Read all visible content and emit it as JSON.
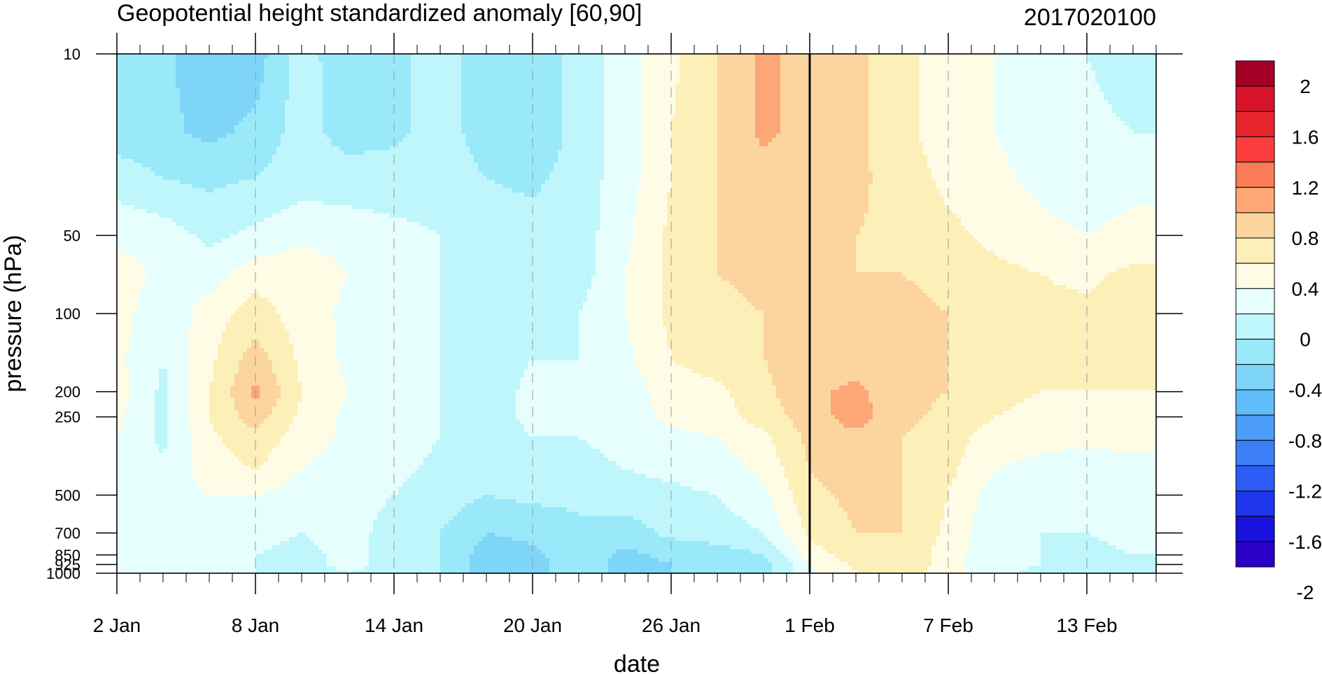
{
  "chart_data": {
    "type": "heatmap",
    "title": "Geopotential height standardized anomaly [60,90]",
    "date_label": "2017020100",
    "xlabel": "date",
    "ylabel": "pressure (hPa)",
    "y_scale": "log",
    "y_reversed": true,
    "ylim": [
      1000,
      10
    ],
    "y_ticks": [
      {
        "value": 10,
        "label": "10"
      },
      {
        "value": 50,
        "label": "50"
      },
      {
        "value": 100,
        "label": "100"
      },
      {
        "value": 200,
        "label": "200"
      },
      {
        "value": 250,
        "label": "250"
      },
      {
        "value": 500,
        "label": "500"
      },
      {
        "value": 700,
        "label": "700"
      },
      {
        "value": 850,
        "label": "850"
      },
      {
        "value": 925,
        "label": "925"
      },
      {
        "value": 1000,
        "label": "1000"
      }
    ],
    "x_start": "2017-01-02",
    "x_end": "2017-02-16",
    "x_ticks": [
      {
        "date": "2017-01-02",
        "label": "2 Jan"
      },
      {
        "date": "2017-01-08",
        "label": "8 Jan"
      },
      {
        "date": "2017-01-14",
        "label": "14 Jan"
      },
      {
        "date": "2017-01-20",
        "label": "20 Jan"
      },
      {
        "date": "2017-01-26",
        "label": "26 Jan"
      },
      {
        "date": "2017-02-01",
        "label": "1 Feb"
      },
      {
        "date": "2017-02-07",
        "label": "7 Feb"
      },
      {
        "date": "2017-02-13",
        "label": "13 Feb"
      }
    ],
    "marker_date": "2017-02-01",
    "colorbar": {
      "labels": [
        "2",
        "1.6",
        "1.2",
        "0.8",
        "0.4",
        "0",
        "-0.4",
        "-0.8",
        "-1.2",
        "-1.6",
        "-2"
      ],
      "colors": [
        "#a50026",
        "#d7142a",
        "#e8242f",
        "#fa3c3c",
        "#fc7b57",
        "#fca775",
        "#fcd49e",
        "#fdefb8",
        "#fffce6",
        "#e6fffd",
        "#bff6fc",
        "#99e9fa",
        "#7ed5f8",
        "#5fbdf9",
        "#4b9df9",
        "#3c7ff6",
        "#2c5cf3",
        "#1d35eb",
        "#1a12de",
        "#2a00c8"
      ]
    },
    "days": [
      2,
      4,
      6,
      8,
      10,
      12,
      14,
      16,
      18,
      20,
      22,
      24,
      26,
      28,
      30,
      32,
      34,
      36,
      38,
      40,
      42,
      44,
      46
    ],
    "levels": [
      10,
      20,
      30,
      50,
      70,
      100,
      150,
      200,
      250,
      300,
      400,
      500,
      700,
      850,
      925,
      1000
    ],
    "values": [
      [
        -0.3,
        -0.35,
        -0.55,
        -0.5,
        -0.1,
        -0.35,
        -0.25,
        -0.1,
        -0.3,
        -0.4,
        -0.1,
        0.1,
        0.35,
        0.6,
        0.85,
        0.7,
        0.65,
        0.45,
        0.3,
        0.2,
        0.1,
        0.0,
        -0.1
      ],
      [
        -0.3,
        -0.35,
        -0.45,
        -0.35,
        -0.1,
        -0.3,
        -0.25,
        -0.1,
        -0.3,
        -0.4,
        -0.1,
        0.1,
        0.4,
        0.6,
        0.85,
        0.7,
        0.65,
        0.45,
        0.3,
        0.2,
        0.1,
        0.05,
        0.0
      ],
      [
        -0.1,
        -0.2,
        -0.25,
        -0.2,
        -0.1,
        -0.1,
        -0.1,
        -0.1,
        -0.2,
        -0.25,
        -0.1,
        0.1,
        0.4,
        0.6,
        0.7,
        0.7,
        0.65,
        0.5,
        0.35,
        0.25,
        0.15,
        0.1,
        0.15
      ],
      [
        0.15,
        0.1,
        -0.05,
        0.05,
        0.15,
        0.1,
        0.05,
        0.0,
        -0.1,
        -0.1,
        -0.1,
        0.15,
        0.45,
        0.6,
        0.65,
        0.65,
        0.6,
        0.55,
        0.45,
        0.35,
        0.25,
        0.2,
        0.25
      ],
      [
        0.3,
        0.15,
        0.1,
        0.3,
        0.35,
        0.2,
        0.1,
        0.0,
        -0.1,
        -0.1,
        -0.1,
        0.2,
        0.45,
        0.6,
        0.65,
        0.65,
        0.6,
        0.6,
        0.55,
        0.45,
        0.4,
        0.35,
        0.45
      ],
      [
        0.3,
        0.05,
        0.3,
        0.5,
        0.3,
        0.15,
        0.1,
        0.0,
        -0.1,
        -0.05,
        0.0,
        0.2,
        0.45,
        0.55,
        0.6,
        0.65,
        0.65,
        0.65,
        0.6,
        0.5,
        0.45,
        0.45,
        0.5
      ],
      [
        0.25,
        0.0,
        0.35,
        0.7,
        0.35,
        0.15,
        0.1,
        0.0,
        -0.1,
        0.0,
        0.0,
        0.15,
        0.4,
        0.5,
        0.6,
        0.7,
        0.7,
        0.65,
        0.6,
        0.5,
        0.45,
        0.45,
        0.5
      ],
      [
        0.3,
        -0.05,
        0.4,
        0.85,
        0.4,
        0.2,
        0.1,
        0.0,
        -0.1,
        0.05,
        0.0,
        0.1,
        0.3,
        0.35,
        0.55,
        0.75,
        0.85,
        0.65,
        0.6,
        0.45,
        0.4,
        0.4,
        0.4
      ],
      [
        0.25,
        -0.05,
        0.4,
        0.7,
        0.35,
        0.15,
        0.1,
        0.0,
        -0.1,
        0.05,
        0.0,
        0.1,
        0.25,
        0.3,
        0.5,
        0.7,
        0.9,
        0.65,
        0.55,
        0.4,
        0.35,
        0.35,
        0.35
      ],
      [
        0.2,
        -0.05,
        0.35,
        0.55,
        0.3,
        0.15,
        0.1,
        0.0,
        -0.1,
        0.0,
        0.0,
        0.05,
        0.15,
        0.2,
        0.35,
        0.65,
        0.75,
        0.6,
        0.5,
        0.3,
        0.25,
        0.25,
        0.25
      ],
      [
        0.15,
        0.05,
        0.3,
        0.4,
        0.2,
        0.1,
        0.05,
        -0.05,
        -0.1,
        -0.05,
        -0.05,
        0.0,
        0.05,
        0.1,
        0.25,
        0.6,
        0.7,
        0.6,
        0.45,
        0.2,
        0.15,
        0.1,
        0.15
      ],
      [
        0.1,
        0.1,
        0.2,
        0.2,
        0.1,
        0.05,
        0.0,
        -0.1,
        -0.2,
        -0.15,
        -0.15,
        -0.1,
        -0.05,
        0.0,
        0.15,
        0.55,
        0.65,
        0.6,
        0.4,
        0.1,
        0.05,
        0.05,
        0.1
      ],
      [
        0.1,
        0.2,
        0.2,
        0.05,
        0.0,
        0.05,
        -0.05,
        -0.2,
        -0.4,
        -0.35,
        -0.25,
        -0.3,
        -0.15,
        -0.1,
        0.0,
        0.45,
        0.6,
        0.6,
        0.35,
        0.05,
        0.0,
        0.0,
        0.05
      ],
      [
        0.15,
        0.2,
        0.2,
        0.0,
        -0.05,
        0.05,
        -0.05,
        -0.2,
        -0.5,
        -0.45,
        -0.25,
        -0.45,
        -0.35,
        -0.3,
        -0.2,
        0.3,
        0.5,
        0.55,
        0.3,
        0.05,
        0.0,
        -0.05,
        0.0
      ],
      [
        0.15,
        0.2,
        0.2,
        0.0,
        -0.05,
        0.05,
        -0.05,
        -0.2,
        -0.5,
        -0.5,
        -0.25,
        -0.5,
        -0.4,
        -0.4,
        -0.3,
        0.2,
        0.45,
        0.55,
        0.3,
        0.05,
        0.0,
        -0.05,
        0.0
      ],
      [
        0.1,
        0.15,
        0.15,
        0.0,
        -0.1,
        0.0,
        -0.05,
        -0.2,
        -0.5,
        -0.5,
        -0.25,
        -0.5,
        -0.4,
        -0.4,
        -0.3,
        0.15,
        0.4,
        0.5,
        0.3,
        0.05,
        -0.05,
        -0.1,
        0.0
      ]
    ]
  }
}
